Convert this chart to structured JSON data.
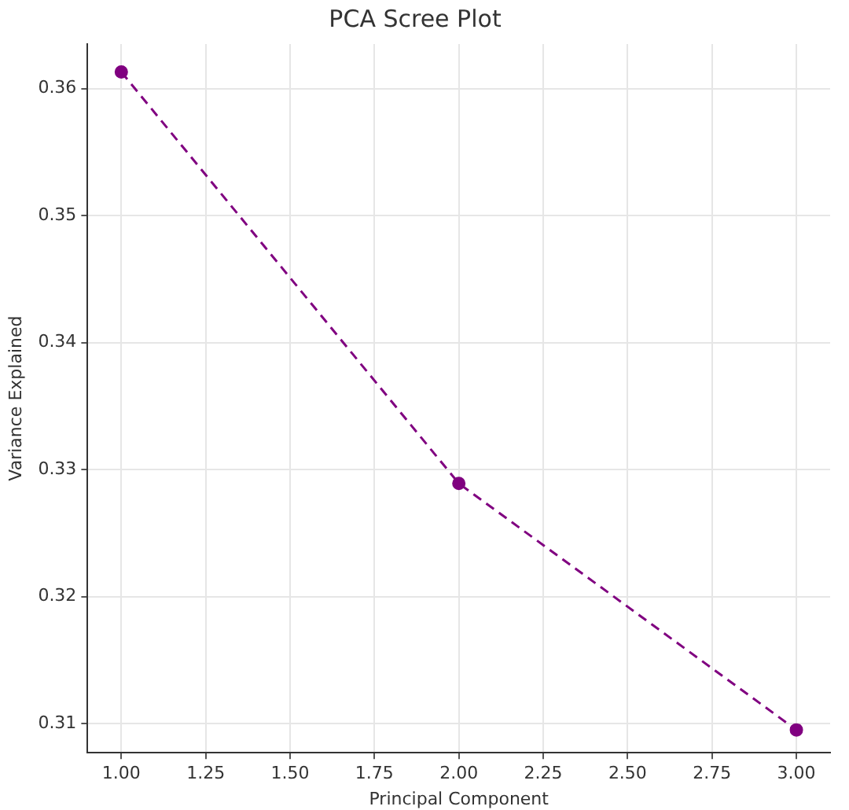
{
  "chart_data": {
    "type": "line",
    "title": "PCA Scree Plot",
    "xlabel": "Principal Component",
    "ylabel": "Variance Explained",
    "x": [
      1,
      2,
      3
    ],
    "series": [
      {
        "color": "#800080",
        "values": [
          0.3613,
          0.3289,
          0.3095
        ]
      }
    ],
    "xlim": [
      0.9,
      3.1
    ],
    "xticks": [
      {
        "value": 1,
        "label": "1.00"
      },
      {
        "value": 1.25,
        "label": "1.25"
      },
      {
        "value": 1.5,
        "label": "1.50"
      },
      {
        "value": 1.75,
        "label": "1.75"
      },
      {
        "value": 2,
        "label": "2.00"
      },
      {
        "value": 2.25,
        "label": "2.25"
      },
      {
        "value": 2.5,
        "label": "2.50"
      },
      {
        "value": 2.75,
        "label": "2.75"
      },
      {
        "value": 3,
        "label": "3.00"
      }
    ],
    "ylim": [
      0.3077,
      0.3635
    ],
    "yticks": [
      {
        "value": 0.31,
        "label": "0.31"
      },
      {
        "value": 0.32,
        "label": "0.32"
      },
      {
        "value": 0.33,
        "label": "0.33"
      },
      {
        "value": 0.34,
        "label": "0.34"
      },
      {
        "value": 0.35,
        "label": "0.35"
      },
      {
        "value": 0.36,
        "label": "0.36"
      }
    ],
    "grid": true,
    "marker": "circle",
    "line_style": "dashed"
  }
}
